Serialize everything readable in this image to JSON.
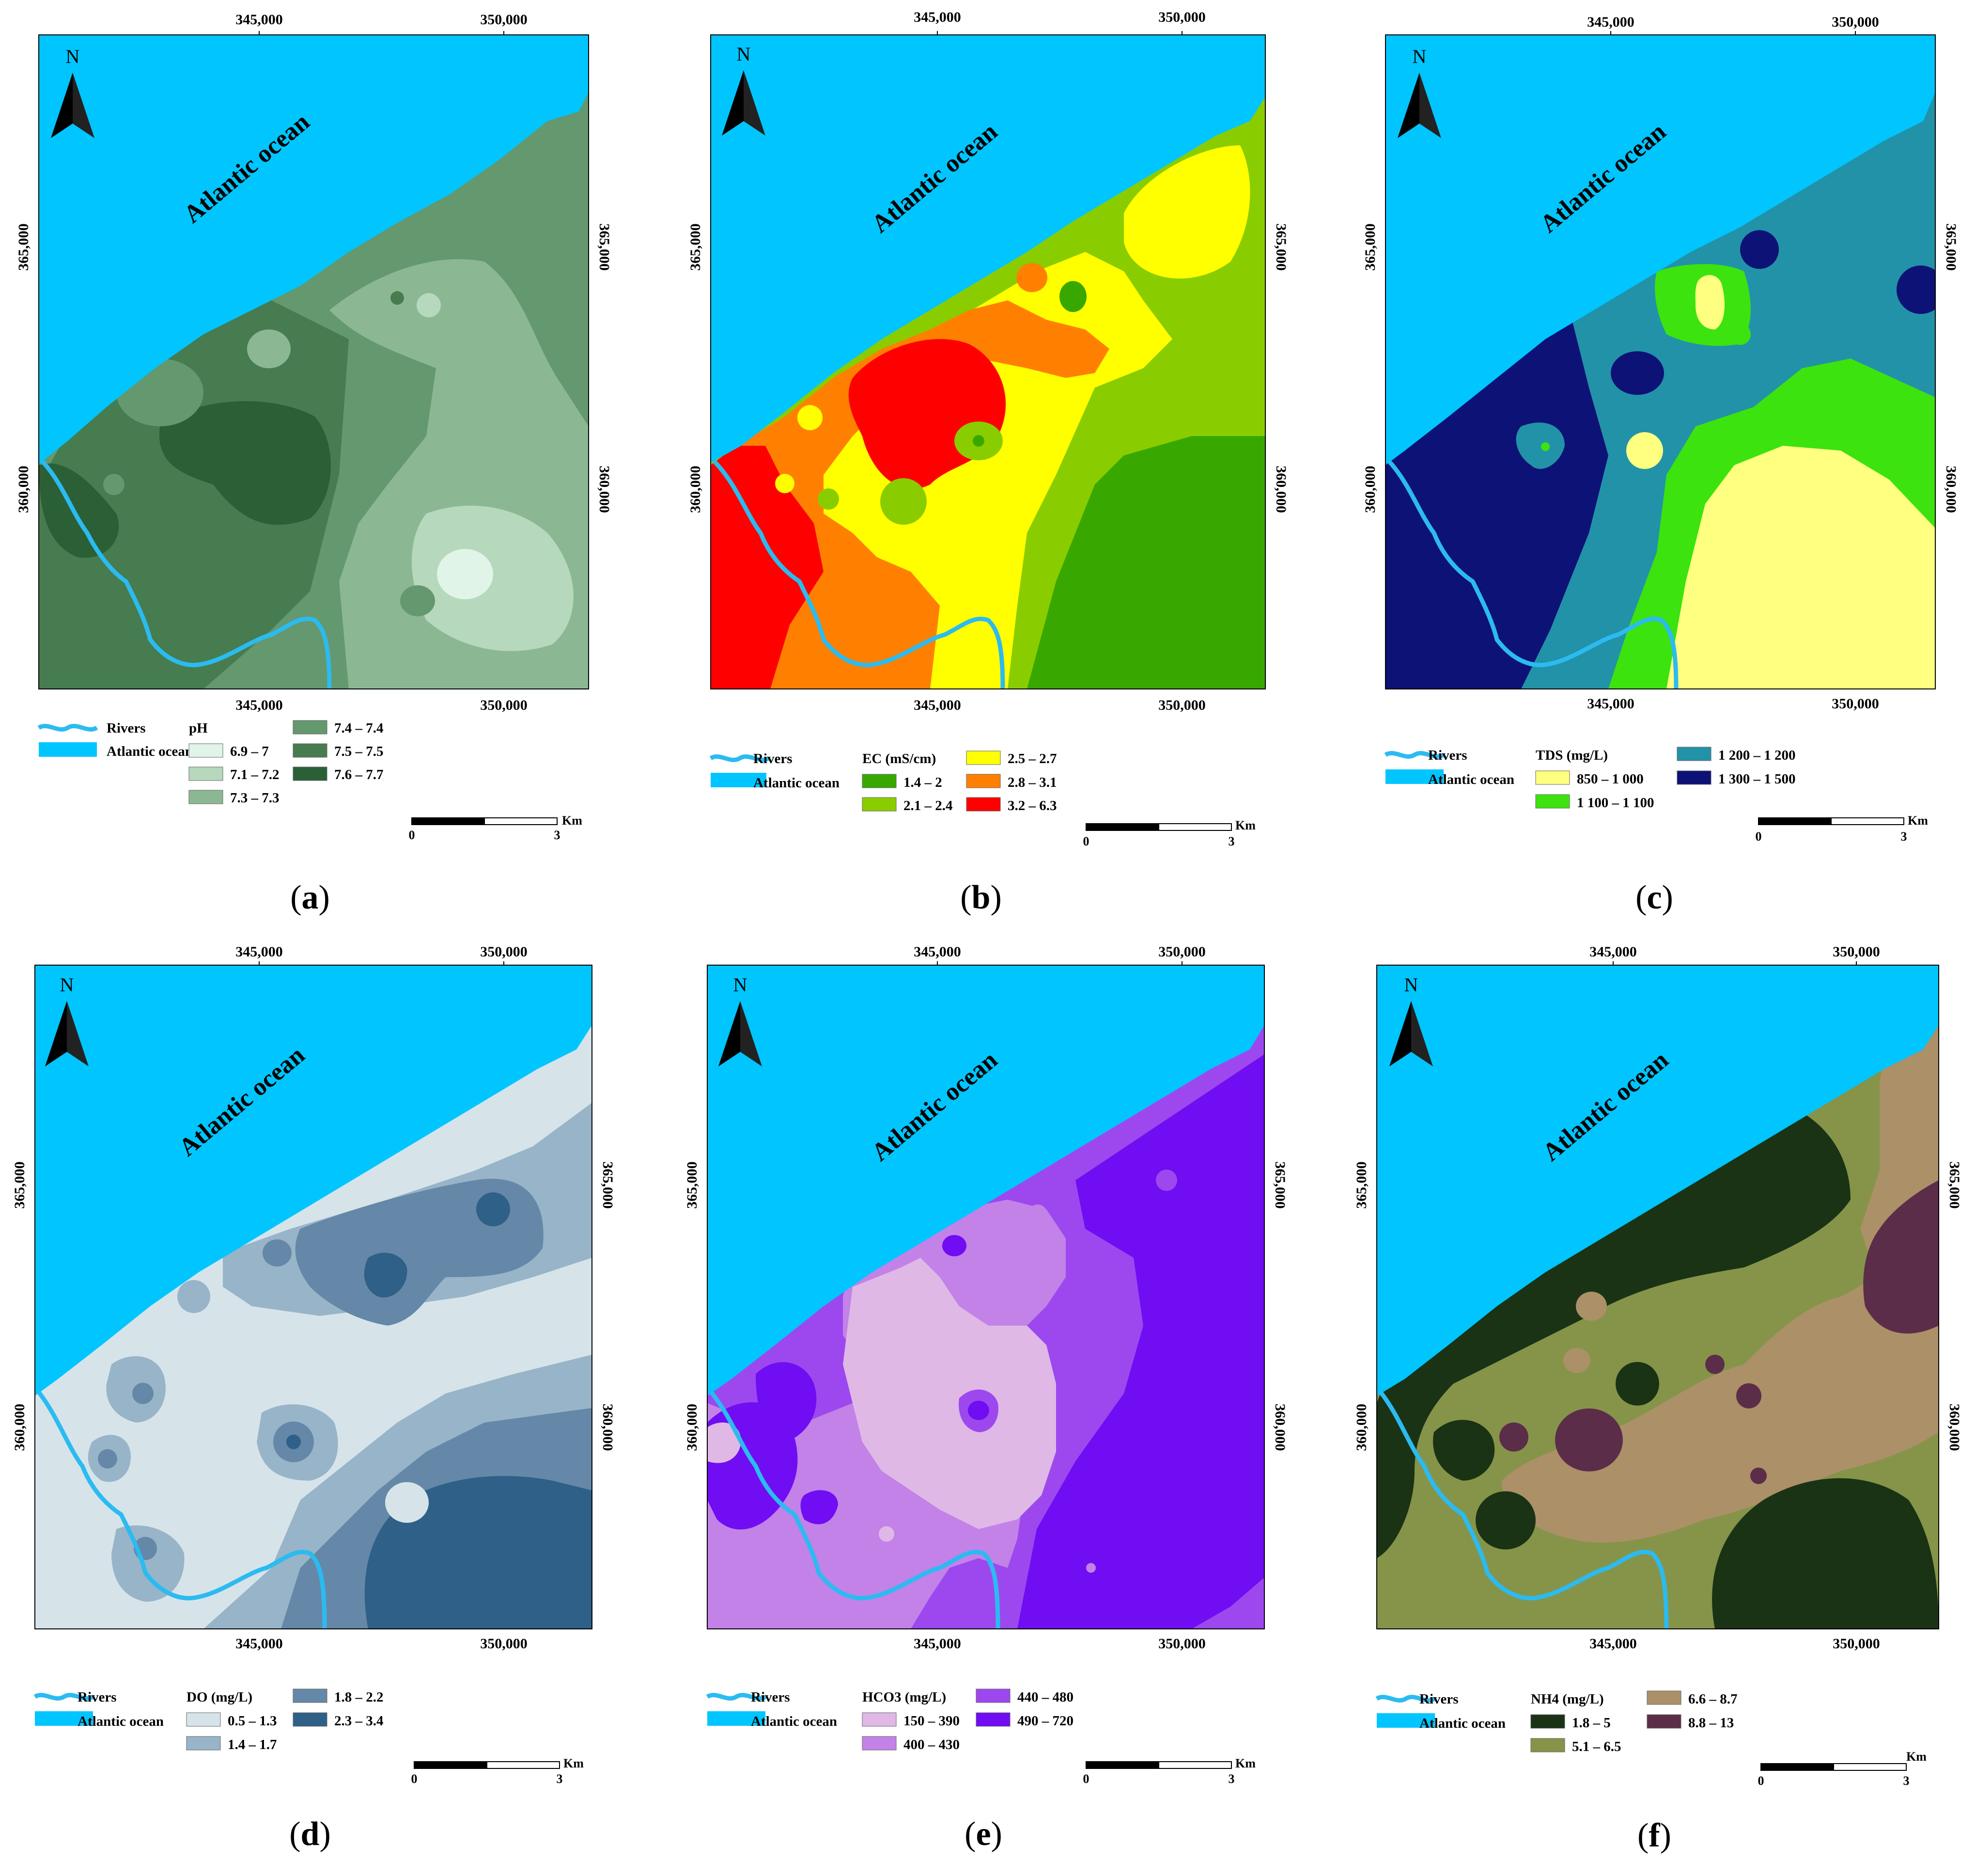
{
  "common": {
    "north": "N",
    "ocean_label": "Atlantic ocean",
    "rivers_label": "Rivers",
    "ocean_legend_label": "Atlantic ocean",
    "scale_unit": "Km",
    "scale_start": "0",
    "scale_end": "3",
    "x_ticks": [
      "345,000",
      "350,000"
    ],
    "y_ticks": [
      "365,000",
      "360,000"
    ],
    "colors": {
      "ocean": "#00c5ff",
      "river": "#2bbbf0"
    }
  },
  "panels": [
    {
      "label": "a",
      "legend_title": "pH",
      "classes": [
        {
          "label": "6.9 – 7",
          "color": "#e0f4e8"
        },
        {
          "label": "7.1 – 7.2",
          "color": "#b6d8bc"
        },
        {
          "label": "7.3 – 7.3",
          "color": "#8bb893"
        },
        {
          "label": "7.4 – 7.4",
          "color": "#64986e"
        },
        {
          "label": "7.5 – 7.5",
          "color": "#467c4f"
        },
        {
          "label": "7.6 – 7.7",
          "color": "#2b5f36"
        }
      ]
    },
    {
      "label": "b",
      "legend_title": "EC (mS/cm)",
      "classes": [
        {
          "label": "1.4 – 2",
          "color": "#38a800"
        },
        {
          "label": "2.1 – 2.4",
          "color": "#89cd00"
        },
        {
          "label": "2.5 – 2.7",
          "color": "#ffff00"
        },
        {
          "label": "2.8 – 3.1",
          "color": "#ff8000"
        },
        {
          "label": "3.2 – 6.3",
          "color": "#ff0000"
        }
      ]
    },
    {
      "label": "c",
      "legend_title": "TDS (mg/L)",
      "classes": [
        {
          "label": "850 – 1 000",
          "color": "#ffff80"
        },
        {
          "label": "1 100 – 1 100",
          "color": "#3ce30e"
        },
        {
          "label": "1 200 – 1 200",
          "color": "#2292a8"
        },
        {
          "label": "1 300 – 1 500",
          "color": "#0d1276"
        }
      ]
    },
    {
      "label": "d",
      "legend_title": "DO (mg/L)",
      "classes": [
        {
          "label": "0.5 – 1.3",
          "color": "#d6e4ea"
        },
        {
          "label": "1.4 – 1.7",
          "color": "#98b4c8"
        },
        {
          "label": "1.8 – 2.2",
          "color": "#6588a8"
        },
        {
          "label": "2.3 – 3.4",
          "color": "#2f6087"
        }
      ]
    },
    {
      "label": "e",
      "legend_title": "HCO3 (mg/L)",
      "classes": [
        {
          "label": "150 – 390",
          "color": "#dfb8e6"
        },
        {
          "label": "400 – 430",
          "color": "#c282e8"
        },
        {
          "label": "440 – 480",
          "color": "#9d48ee"
        },
        {
          "label": "490 – 720",
          "color": "#700df2"
        }
      ]
    },
    {
      "label": "f",
      "legend_title": "NH4 (mg/L)",
      "classes": [
        {
          "label": "1.8 – 5",
          "color": "#1a3315"
        },
        {
          "label": "5.1 – 6.5",
          "color": "#869449"
        },
        {
          "label": "6.6 – 8.7",
          "color": "#ab9068"
        },
        {
          "label": "8.8 – 13",
          "color": "#5c2d49"
        }
      ]
    }
  ]
}
